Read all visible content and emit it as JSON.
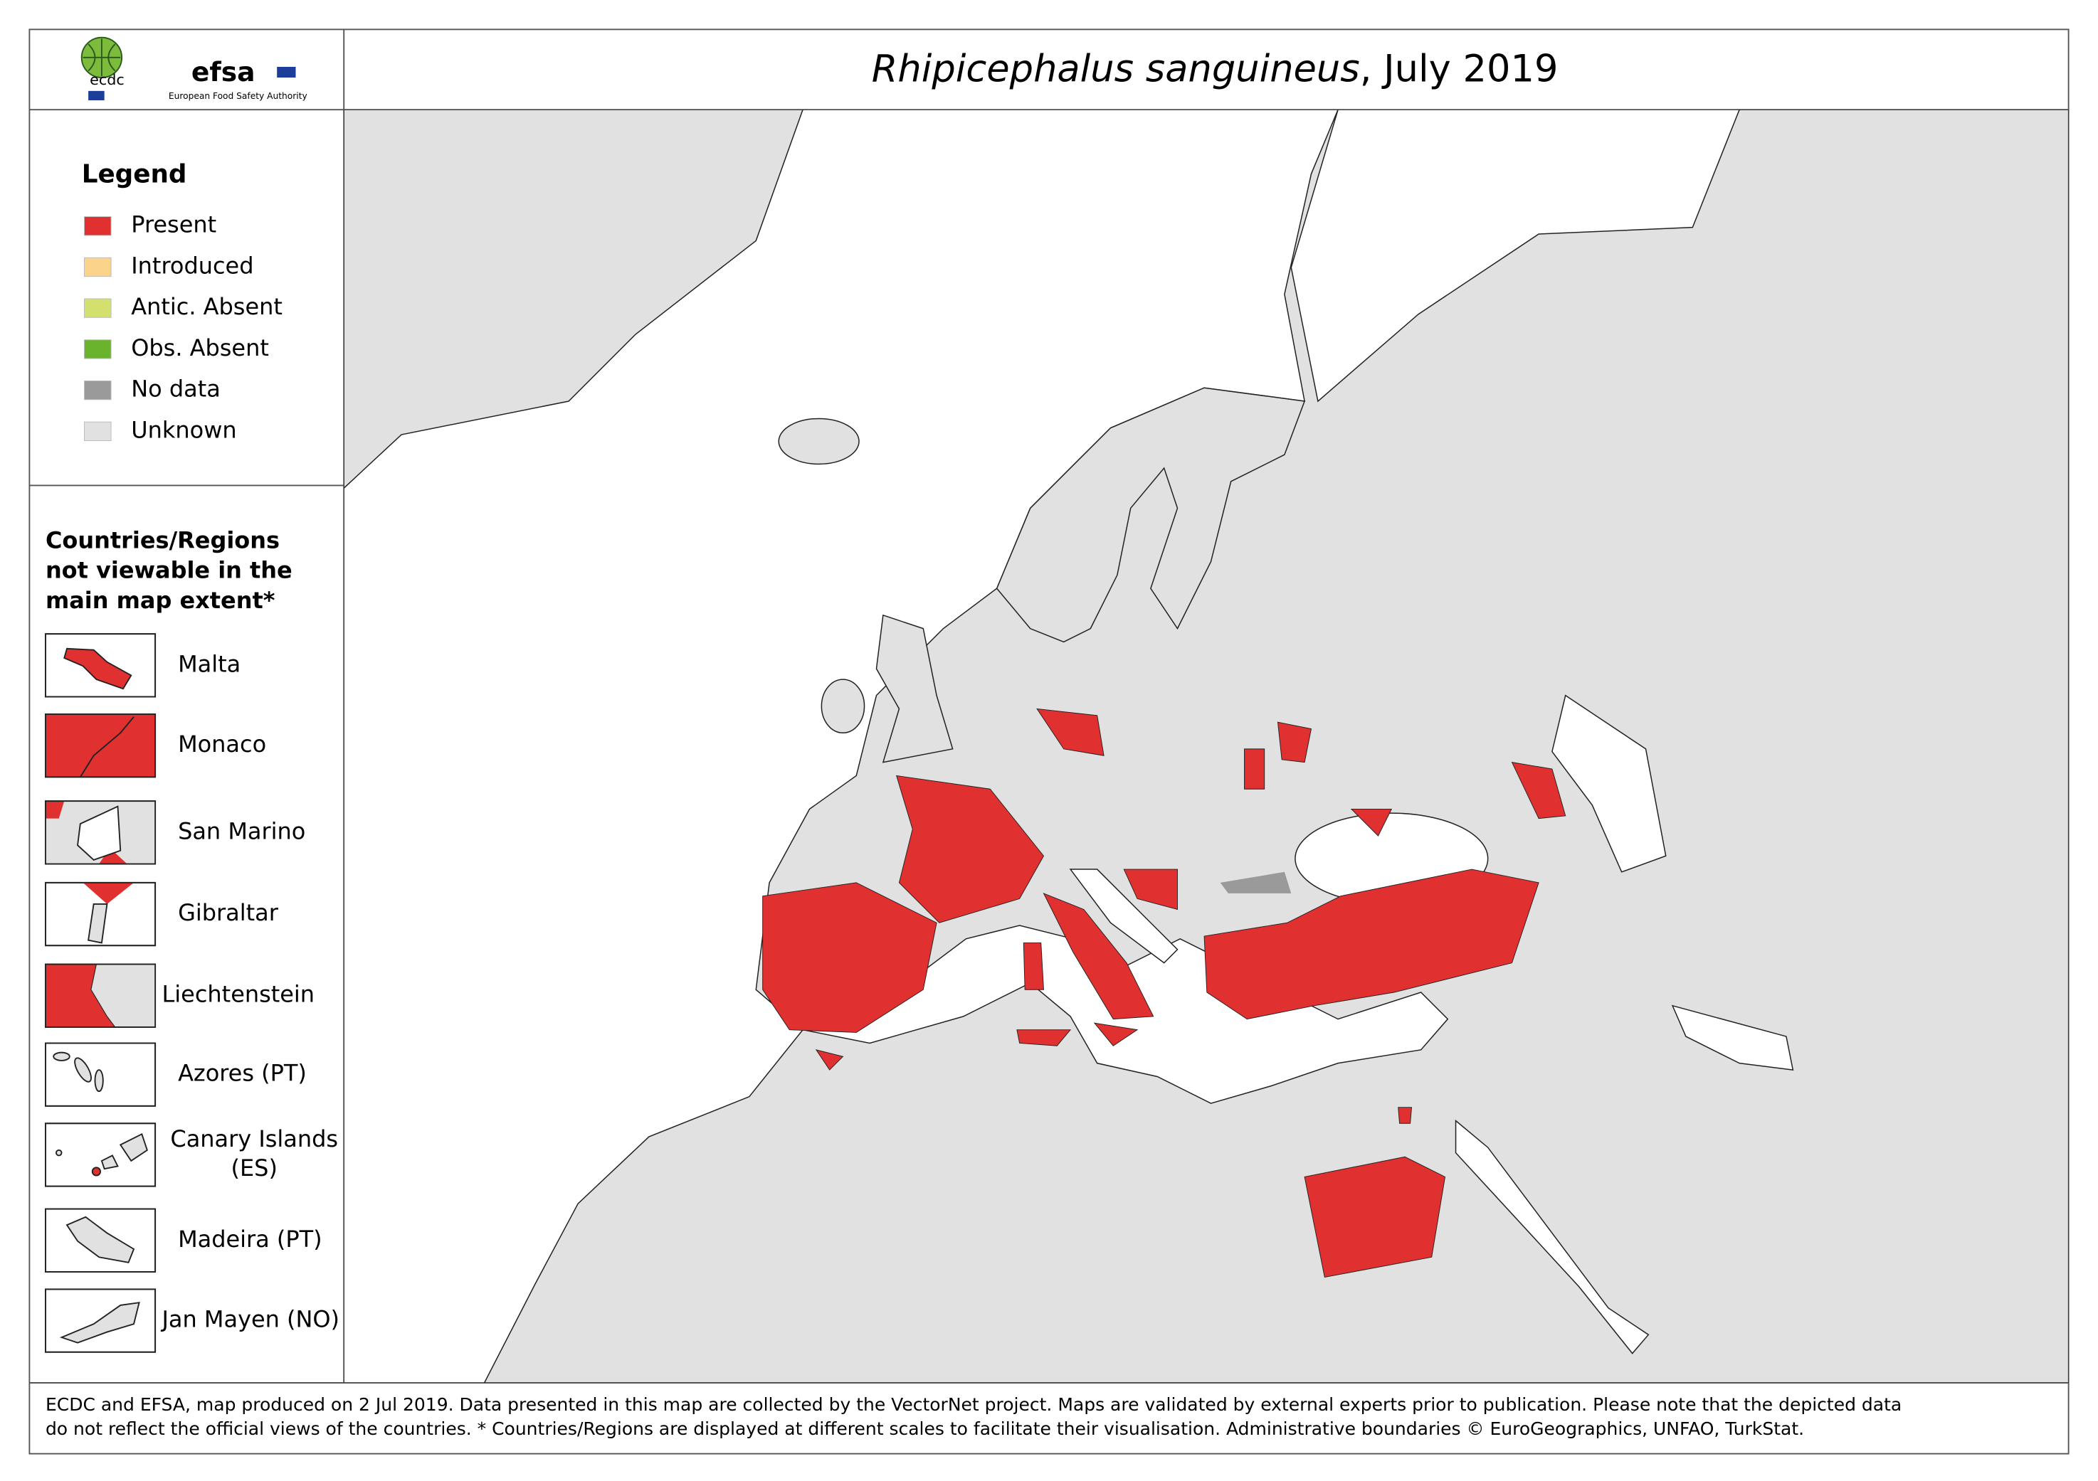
{
  "header": {
    "title_species": "Rhipicephalus sanguineus",
    "title_rest": ", July 2019",
    "logos": {
      "ecdc": "ecdc",
      "efsa": "efsa",
      "efsa_caption": "European Food Safety Authority"
    }
  },
  "legend": {
    "title": "Legend",
    "items": [
      {
        "label": "Present",
        "color": "#e03030"
      },
      {
        "label": "Introduced",
        "color": "#fcd38a"
      },
      {
        "label": "Antic. Absent",
        "color": "#d4e06e"
      },
      {
        "label": "Obs. Absent",
        "color": "#6ab42d"
      },
      {
        "label": "No data",
        "color": "#9a9a9a"
      },
      {
        "label": "Unknown",
        "color": "#e1e1e1"
      }
    ]
  },
  "insets": {
    "heading": [
      "Countries/Regions",
      "not viewable in the",
      "main map extent*"
    ],
    "items": [
      {
        "label": [
          "Malta"
        ]
      },
      {
        "label": [
          "Monaco"
        ]
      },
      {
        "label": [
          "San Marino"
        ]
      },
      {
        "label": [
          "Gibraltar"
        ]
      },
      {
        "label": [
          "Liechtenstein"
        ]
      },
      {
        "label": [
          "Azores (PT)"
        ]
      },
      {
        "label": [
          "Canary Islands",
          "(ES)"
        ]
      },
      {
        "label": [
          "Madeira (PT)"
        ]
      },
      {
        "label": [
          "Jan Mayen (NO)"
        ]
      }
    ]
  },
  "footer": {
    "lines": [
      "ECDC and EFSA, map produced on 2 Jul 2019. Data presented in this map are collected by the VectorNet project. Maps are validated by external experts prior to publication. Please note that the depicted data",
      "do not reflect the official views of the countries. * Countries/Regions are displayed at different scales to facilitate their visualisation. Administrative boundaries © EuroGeographics, UNFAO, TurkStat."
    ]
  }
}
